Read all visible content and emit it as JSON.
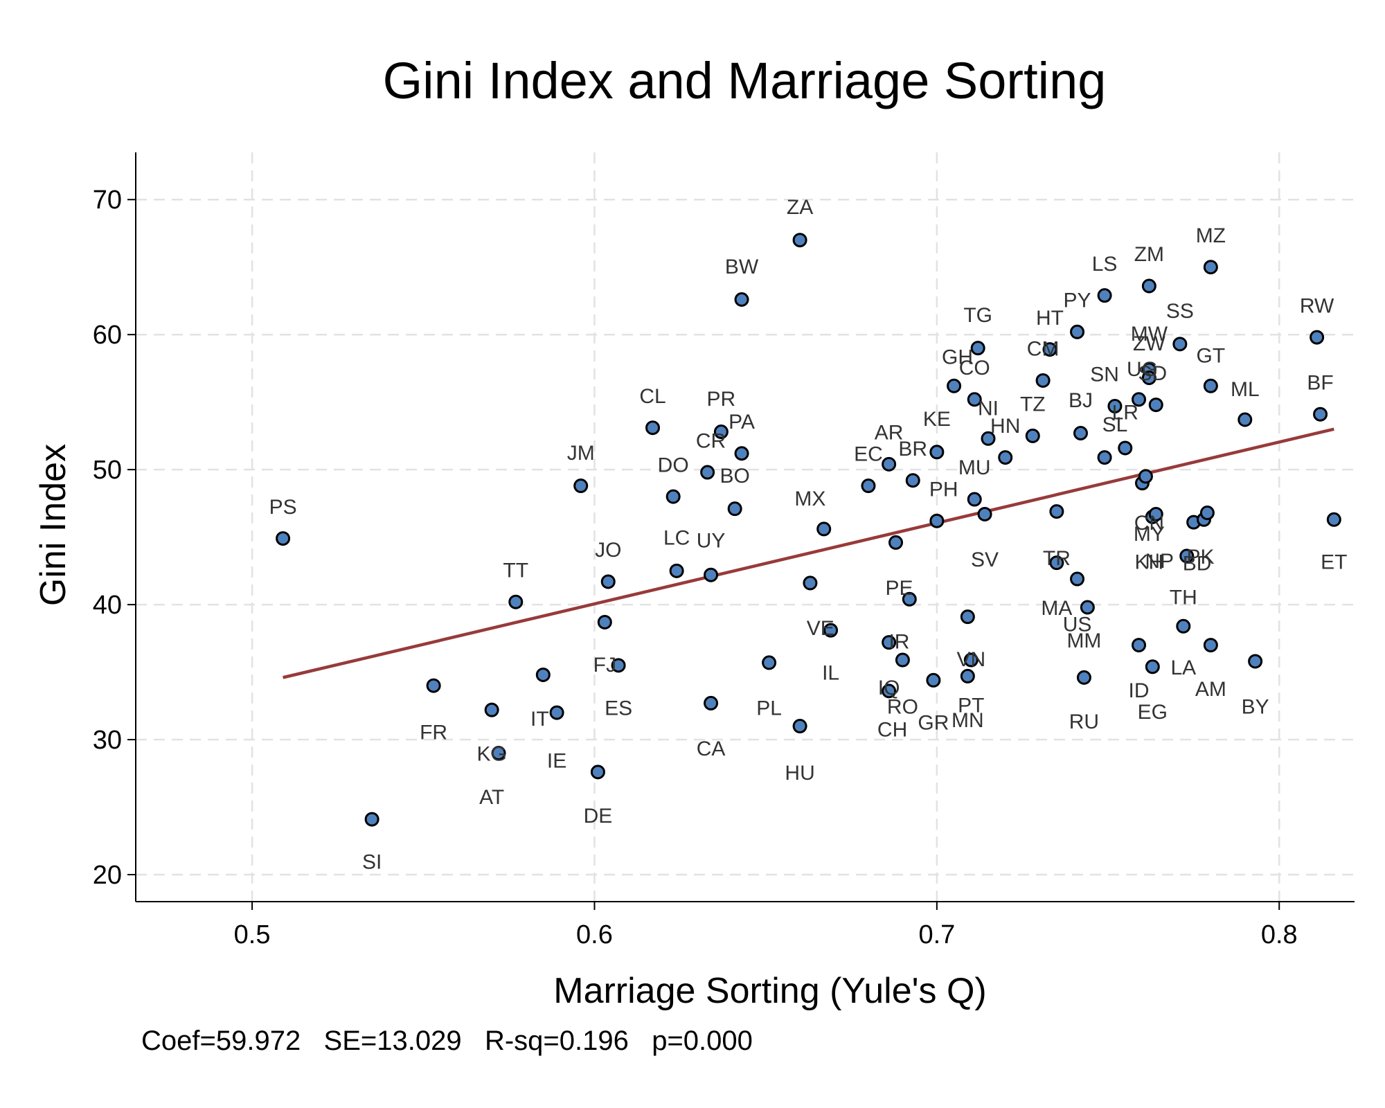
{
  "chart_data": {
    "type": "scatter",
    "title": "Gini Index and Marriage Sorting",
    "xlabel": "Marriage Sorting (Yule's Q)",
    "ylabel": "Gini Index",
    "xlim": [
      0.466,
      0.822
    ],
    "ylim": [
      18,
      73.5
    ],
    "xticks": [
      0.5,
      0.6,
      0.7,
      0.8
    ],
    "xtick_labels": [
      "0.5",
      "0.6",
      "0.7",
      "0.8"
    ],
    "yticks": [
      20,
      30,
      40,
      50,
      60,
      70
    ],
    "ytick_labels": [
      "20",
      "30",
      "40",
      "50",
      "60",
      "70"
    ],
    "grid": true,
    "note": "Coef=59.972   SE=13.029   R-sq=0.196   p=0.000",
    "colors": {
      "marker": "#4f81bd",
      "fit_line": "#983a3a",
      "grid": "#e2e2e2",
      "label": "#333333"
    },
    "fit_line": {
      "x": [
        0.509,
        0.816
      ],
      "y": [
        34.6,
        53.0
      ]
    },
    "points": [
      {
        "label": "PS",
        "x": 0.509,
        "y": 44.9
      },
      {
        "label": "SI",
        "x": 0.535,
        "y": 24.1
      },
      {
        "label": "FR",
        "x": 0.553,
        "y": 34.0
      },
      {
        "label": "AT",
        "x": 0.57,
        "y": 32.2
      },
      {
        "label": "KG",
        "x": 0.572,
        "y": 29.0
      },
      {
        "label": "TT",
        "x": 0.577,
        "y": 40.2
      },
      {
        "label": "IT",
        "x": 0.585,
        "y": 34.8
      },
      {
        "label": "IE",
        "x": 0.589,
        "y": 32.0
      },
      {
        "label": "JM",
        "x": 0.596,
        "y": 48.8
      },
      {
        "label": "DE",
        "x": 0.601,
        "y": 27.6
      },
      {
        "label": "JO",
        "x": 0.603,
        "y": 38.7
      },
      {
        "label": "FJ",
        "x": 0.604,
        "y": 41.7
      },
      {
        "label": "ES",
        "x": 0.607,
        "y": 35.5
      },
      {
        "label": "CL",
        "x": 0.617,
        "y": 53.1
      },
      {
        "label": "DO",
        "x": 0.623,
        "y": 48.0
      },
      {
        "label": "LC",
        "x": 0.624,
        "y": 42.5
      },
      {
        "label": "CR",
        "x": 0.633,
        "y": 49.8
      },
      {
        "label": "UY",
        "x": 0.634,
        "y": 42.2
      },
      {
        "label": "CA",
        "x": 0.634,
        "y": 32.7
      },
      {
        "label": "PR",
        "x": 0.637,
        "y": 52.8
      },
      {
        "label": "BO",
        "x": 0.641,
        "y": 47.1
      },
      {
        "label": "PA",
        "x": 0.643,
        "y": 51.2
      },
      {
        "label": "BW",
        "x": 0.643,
        "y": 62.6
      },
      {
        "label": "PL",
        "x": 0.651,
        "y": 35.7
      },
      {
        "label": "ZA",
        "x": 0.66,
        "y": 67.0
      },
      {
        "label": "HU",
        "x": 0.66,
        "y": 31.0
      },
      {
        "label": "MX",
        "x": 0.663,
        "y": 41.6
      },
      {
        "label": "VE",
        "x": 0.667,
        "y": 45.6
      },
      {
        "label": "IL",
        "x": 0.669,
        "y": 38.1
      },
      {
        "label": "EC",
        "x": 0.68,
        "y": 48.8
      },
      {
        "label": "AR",
        "x": 0.686,
        "y": 50.4
      },
      {
        "label": "IR",
        "x": 0.686,
        "y": 37.2
      },
      {
        "label": "IQ",
        "x": 0.686,
        "y": 33.6
      },
      {
        "label": "PE",
        "x": 0.688,
        "y": 44.6
      },
      {
        "label": "RO",
        "x": 0.69,
        "y": 35.9
      },
      {
        "label": "CH",
        "x": 0.692,
        "y": 40.4
      },
      {
        "label": "BR",
        "x": 0.693,
        "y": 49.2
      },
      {
        "label": "GR",
        "x": 0.699,
        "y": 34.4
      },
      {
        "label": "PH",
        "x": 0.7,
        "y": 46.2
      },
      {
        "label": "KE",
        "x": 0.7,
        "y": 51.3
      },
      {
        "label": "GH",
        "x": 0.705,
        "y": 56.2
      },
      {
        "label": "MN",
        "x": 0.709,
        "y": 39.1
      },
      {
        "label": "PT",
        "x": 0.709,
        "y": 34.7
      },
      {
        "label": "VN",
        "x": 0.71,
        "y": 35.9
      },
      {
        "label": "TG",
        "x": 0.712,
        "y": 59.0
      },
      {
        "label": "CO",
        "x": 0.711,
        "y": 55.2
      },
      {
        "label": "MU",
        "x": 0.711,
        "y": 47.8
      },
      {
        "label": "SV",
        "x": 0.714,
        "y": 46.7
      },
      {
        "label": "NI",
        "x": 0.715,
        "y": 52.3
      },
      {
        "label": "HN",
        "x": 0.72,
        "y": 50.9
      },
      {
        "label": "TZ",
        "x": 0.728,
        "y": 52.5
      },
      {
        "label": "CM",
        "x": 0.731,
        "y": 56.6
      },
      {
        "label": "HT",
        "x": 0.733,
        "y": 58.9
      },
      {
        "label": "TR",
        "x": 0.735,
        "y": 46.9
      },
      {
        "label": "MA",
        "x": 0.735,
        "y": 43.1
      },
      {
        "label": "US",
        "x": 0.741,
        "y": 41.9
      },
      {
        "label": "MM",
        "x": 0.743,
        "y": 34.6
      },
      {
        "label": "RU",
        "x": 0.744,
        "y": 39.8
      },
      {
        "label": "PY",
        "x": 0.741,
        "y": 60.2
      },
      {
        "label": "BJ",
        "x": 0.742,
        "y": 52.7
      },
      {
        "label": "SN",
        "x": 0.749,
        "y": 50.9
      },
      {
        "label": "LS",
        "x": 0.749,
        "y": 62.9
      },
      {
        "label": "SL",
        "x": 0.752,
        "y": 54.7
      },
      {
        "label": "LR",
        "x": 0.755,
        "y": 51.6
      },
      {
        "label": "ZW",
        "x": 0.759,
        "y": 55.2
      },
      {
        "label": "UG",
        "x": 0.76,
        "y": 49.0
      },
      {
        "label": "ID",
        "x": 0.759,
        "y": 37.0
      },
      {
        "label": "EG",
        "x": 0.763,
        "y": 35.4
      },
      {
        "label": "MW",
        "x": 0.762,
        "y": 57.4
      },
      {
        "label": "SD",
        "x": 0.762,
        "y": 56.8
      },
      {
        "label": "ZM",
        "x": 0.762,
        "y": 63.6
      },
      {
        "label": "CN",
        "x": 0.763,
        "y": 46.5
      },
      {
        "label": "MY",
        "x": 0.764,
        "y": 46.7
      },
      {
        "label": "KH",
        "x": 0.761,
        "y": 49.5
      },
      {
        "label": "NP",
        "x": 0.764,
        "y": 54.8
      },
      {
        "label": "SS",
        "x": 0.771,
        "y": 59.3
      },
      {
        "label": "TH",
        "x": 0.772,
        "y": 38.4
      },
      {
        "label": "PK",
        "x": 0.773,
        "y": 43.6
      },
      {
        "label": "BD",
        "x": 0.775,
        "y": 46.1
      },
      {
        "label": "LA",
        "x": 0.778,
        "y": 46.3
      },
      {
        "label": "GT",
        "x": 0.78,
        "y": 56.2
      },
      {
        "label": "AM",
        "x": 0.779,
        "y": 46.8
      },
      {
        "label": "MZ",
        "x": 0.78,
        "y": 65.0
      },
      {
        "label": "AM2",
        "x": 0.78,
        "y": 37.0
      },
      {
        "label": "ML",
        "x": 0.79,
        "y": 53.7
      },
      {
        "label": "BY",
        "x": 0.793,
        "y": 35.8
      },
      {
        "label": "RW",
        "x": 0.811,
        "y": 59.8
      },
      {
        "label": "BF",
        "x": 0.812,
        "y": 54.1
      },
      {
        "label": "ET",
        "x": 0.816,
        "y": 46.3
      }
    ],
    "labels": [
      {
        "text": "PS",
        "x": 0.509,
        "y": 47.3
      },
      {
        "text": "SI",
        "x": 0.535,
        "y": 21.0
      },
      {
        "text": "FR",
        "x": 0.553,
        "y": 30.6
      },
      {
        "text": "AT",
        "x": 0.57,
        "y": 25.8
      },
      {
        "text": "KG",
        "x": 0.57,
        "y": 29.0
      },
      {
        "text": "TT",
        "x": 0.577,
        "y": 42.6
      },
      {
        "text": "IT",
        "x": 0.584,
        "y": 31.6
      },
      {
        "text": "IE",
        "x": 0.589,
        "y": 28.5
      },
      {
        "text": "JM",
        "x": 0.596,
        "y": 51.3
      },
      {
        "text": "DE",
        "x": 0.601,
        "y": 24.4
      },
      {
        "text": "JO",
        "x": 0.604,
        "y": 44.1
      },
      {
        "text": "FJ",
        "x": 0.603,
        "y": 35.6
      },
      {
        "text": "ES",
        "x": 0.607,
        "y": 32.4
      },
      {
        "text": "CL",
        "x": 0.617,
        "y": 55.5
      },
      {
        "text": "DO",
        "x": 0.623,
        "y": 50.4
      },
      {
        "text": "LC",
        "x": 0.624,
        "y": 45.0
      },
      {
        "text": "CR",
        "x": 0.634,
        "y": 52.2
      },
      {
        "text": "UY",
        "x": 0.634,
        "y": 44.8
      },
      {
        "text": "CA",
        "x": 0.634,
        "y": 29.4
      },
      {
        "text": "PR",
        "x": 0.637,
        "y": 55.3
      },
      {
        "text": "BO",
        "x": 0.641,
        "y": 49.6
      },
      {
        "text": "PA",
        "x": 0.643,
        "y": 53.6
      },
      {
        "text": "BW",
        "x": 0.643,
        "y": 65.1
      },
      {
        "text": "PL",
        "x": 0.651,
        "y": 32.4
      },
      {
        "text": "ZA",
        "x": 0.66,
        "y": 69.5
      },
      {
        "text": "HU",
        "x": 0.66,
        "y": 27.6
      },
      {
        "text": "MX",
        "x": 0.663,
        "y": 47.9
      },
      {
        "text": "VE",
        "x": 0.666,
        "y": 38.3
      },
      {
        "text": "IL",
        "x": 0.669,
        "y": 35.0
      },
      {
        "text": "EC",
        "x": 0.68,
        "y": 51.2
      },
      {
        "text": "AR",
        "x": 0.686,
        "y": 52.8
      },
      {
        "text": "IR",
        "x": 0.689,
        "y": 37.3
      },
      {
        "text": "IQ",
        "x": 0.686,
        "y": 33.9
      },
      {
        "text": "PE",
        "x": 0.689,
        "y": 41.3
      },
      {
        "text": "RO",
        "x": 0.69,
        "y": 32.5
      },
      {
        "text": "CH",
        "x": 0.687,
        "y": 30.8
      },
      {
        "text": "BR",
        "x": 0.693,
        "y": 51.6
      },
      {
        "text": "GR",
        "x": 0.699,
        "y": 31.3
      },
      {
        "text": "PH",
        "x": 0.702,
        "y": 48.6
      },
      {
        "text": "KE",
        "x": 0.7,
        "y": 53.8
      },
      {
        "text": "GH",
        "x": 0.706,
        "y": 58.4
      },
      {
        "text": "MN",
        "x": 0.709,
        "y": 31.5
      },
      {
        "text": "PT",
        "x": 0.71,
        "y": 32.6
      },
      {
        "text": "VN",
        "x": 0.71,
        "y": 36.0
      },
      {
        "text": "TG",
        "x": 0.712,
        "y": 61.5
      },
      {
        "text": "CO",
        "x": 0.711,
        "y": 57.6
      },
      {
        "text": "MU",
        "x": 0.711,
        "y": 50.2
      },
      {
        "text": "SV",
        "x": 0.714,
        "y": 43.4
      },
      {
        "text": "NI",
        "x": 0.715,
        "y": 54.6
      },
      {
        "text": "HN",
        "x": 0.72,
        "y": 53.3
      },
      {
        "text": "TZ",
        "x": 0.728,
        "y": 54.9
      },
      {
        "text": "CM",
        "x": 0.731,
        "y": 59.0
      },
      {
        "text": "HT",
        "x": 0.733,
        "y": 61.3
      },
      {
        "text": "TR",
        "x": 0.735,
        "y": 43.5
      },
      {
        "text": "MA",
        "x": 0.735,
        "y": 39.8
      },
      {
        "text": "US",
        "x": 0.741,
        "y": 38.6
      },
      {
        "text": "MM",
        "x": 0.743,
        "y": 37.4
      },
      {
        "text": "RU",
        "x": 0.743,
        "y": 31.4
      },
      {
        "text": "PY",
        "x": 0.741,
        "y": 62.6
      },
      {
        "text": "BJ",
        "x": 0.742,
        "y": 55.2
      },
      {
        "text": "SN",
        "x": 0.749,
        "y": 57.1
      },
      {
        "text": "LS",
        "x": 0.749,
        "y": 65.3
      },
      {
        "text": "SL",
        "x": 0.752,
        "y": 53.4
      },
      {
        "text": "LR",
        "x": 0.755,
        "y": 54.3
      },
      {
        "text": "ZW",
        "x": 0.762,
        "y": 59.4
      },
      {
        "text": "UG",
        "x": 0.76,
        "y": 57.5
      },
      {
        "text": "ID",
        "x": 0.759,
        "y": 33.7
      },
      {
        "text": "EG",
        "x": 0.763,
        "y": 32.1
      },
      {
        "text": "MW",
        "x": 0.762,
        "y": 60.1
      },
      {
        "text": "SD",
        "x": 0.763,
        "y": 57.2
      },
      {
        "text": "ZM",
        "x": 0.762,
        "y": 66.0
      },
      {
        "text": "CN",
        "x": 0.762,
        "y": 46.1
      },
      {
        "text": "MY",
        "x": 0.762,
        "y": 45.3
      },
      {
        "text": "KH",
        "x": 0.762,
        "y": 43.2
      },
      {
        "text": "NP",
        "x": 0.765,
        "y": 43.3
      },
      {
        "text": "SS",
        "x": 0.771,
        "y": 61.8
      },
      {
        "text": "TH",
        "x": 0.772,
        "y": 40.6
      },
      {
        "text": "PK",
        "x": 0.777,
        "y": 43.6
      },
      {
        "text": "BD",
        "x": 0.776,
        "y": 43.1
      },
      {
        "text": "LA",
        "x": 0.772,
        "y": 35.4
      },
      {
        "text": "GT",
        "x": 0.78,
        "y": 58.5
      },
      {
        "text": "AM",
        "x": 0.78,
        "y": 33.8
      },
      {
        "text": "MZ",
        "x": 0.78,
        "y": 67.4
      },
      {
        "text": "ML",
        "x": 0.79,
        "y": 56.0
      },
      {
        "text": "BY",
        "x": 0.793,
        "y": 32.5
      },
      {
        "text": "RW",
        "x": 0.811,
        "y": 62.2
      },
      {
        "text": "BF",
        "x": 0.812,
        "y": 56.5
      },
      {
        "text": "ET",
        "x": 0.816,
        "y": 43.2
      }
    ]
  }
}
